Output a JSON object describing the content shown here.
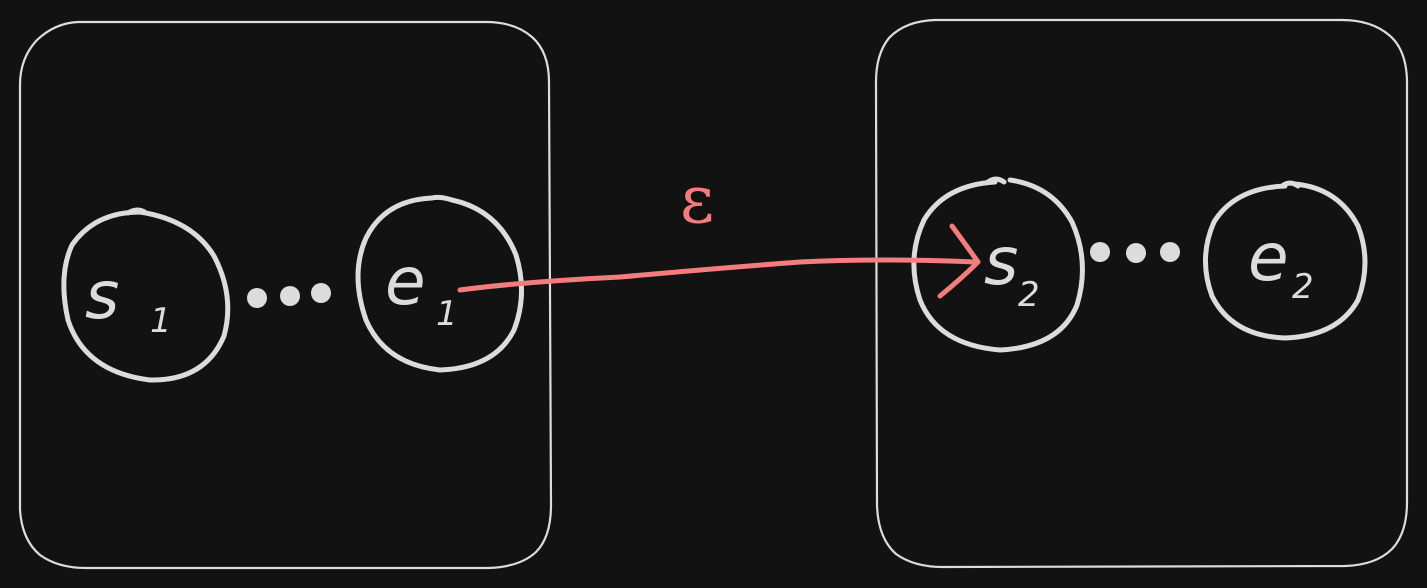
{
  "diagram": {
    "type": "nfa-concatenation",
    "colors": {
      "background": "#121212",
      "stroke": "#dcdcdc",
      "accent": "#f47c7c"
    },
    "left_box": {
      "start_state": {
        "main": "s",
        "sub": "1"
      },
      "end_state": {
        "main": "e",
        "sub": "1"
      }
    },
    "right_box": {
      "start_state": {
        "main": "s",
        "sub": "2"
      },
      "end_state": {
        "main": "e",
        "sub": "2"
      }
    },
    "transition": {
      "label": "ε",
      "from": "e1",
      "to": "s2"
    }
  }
}
